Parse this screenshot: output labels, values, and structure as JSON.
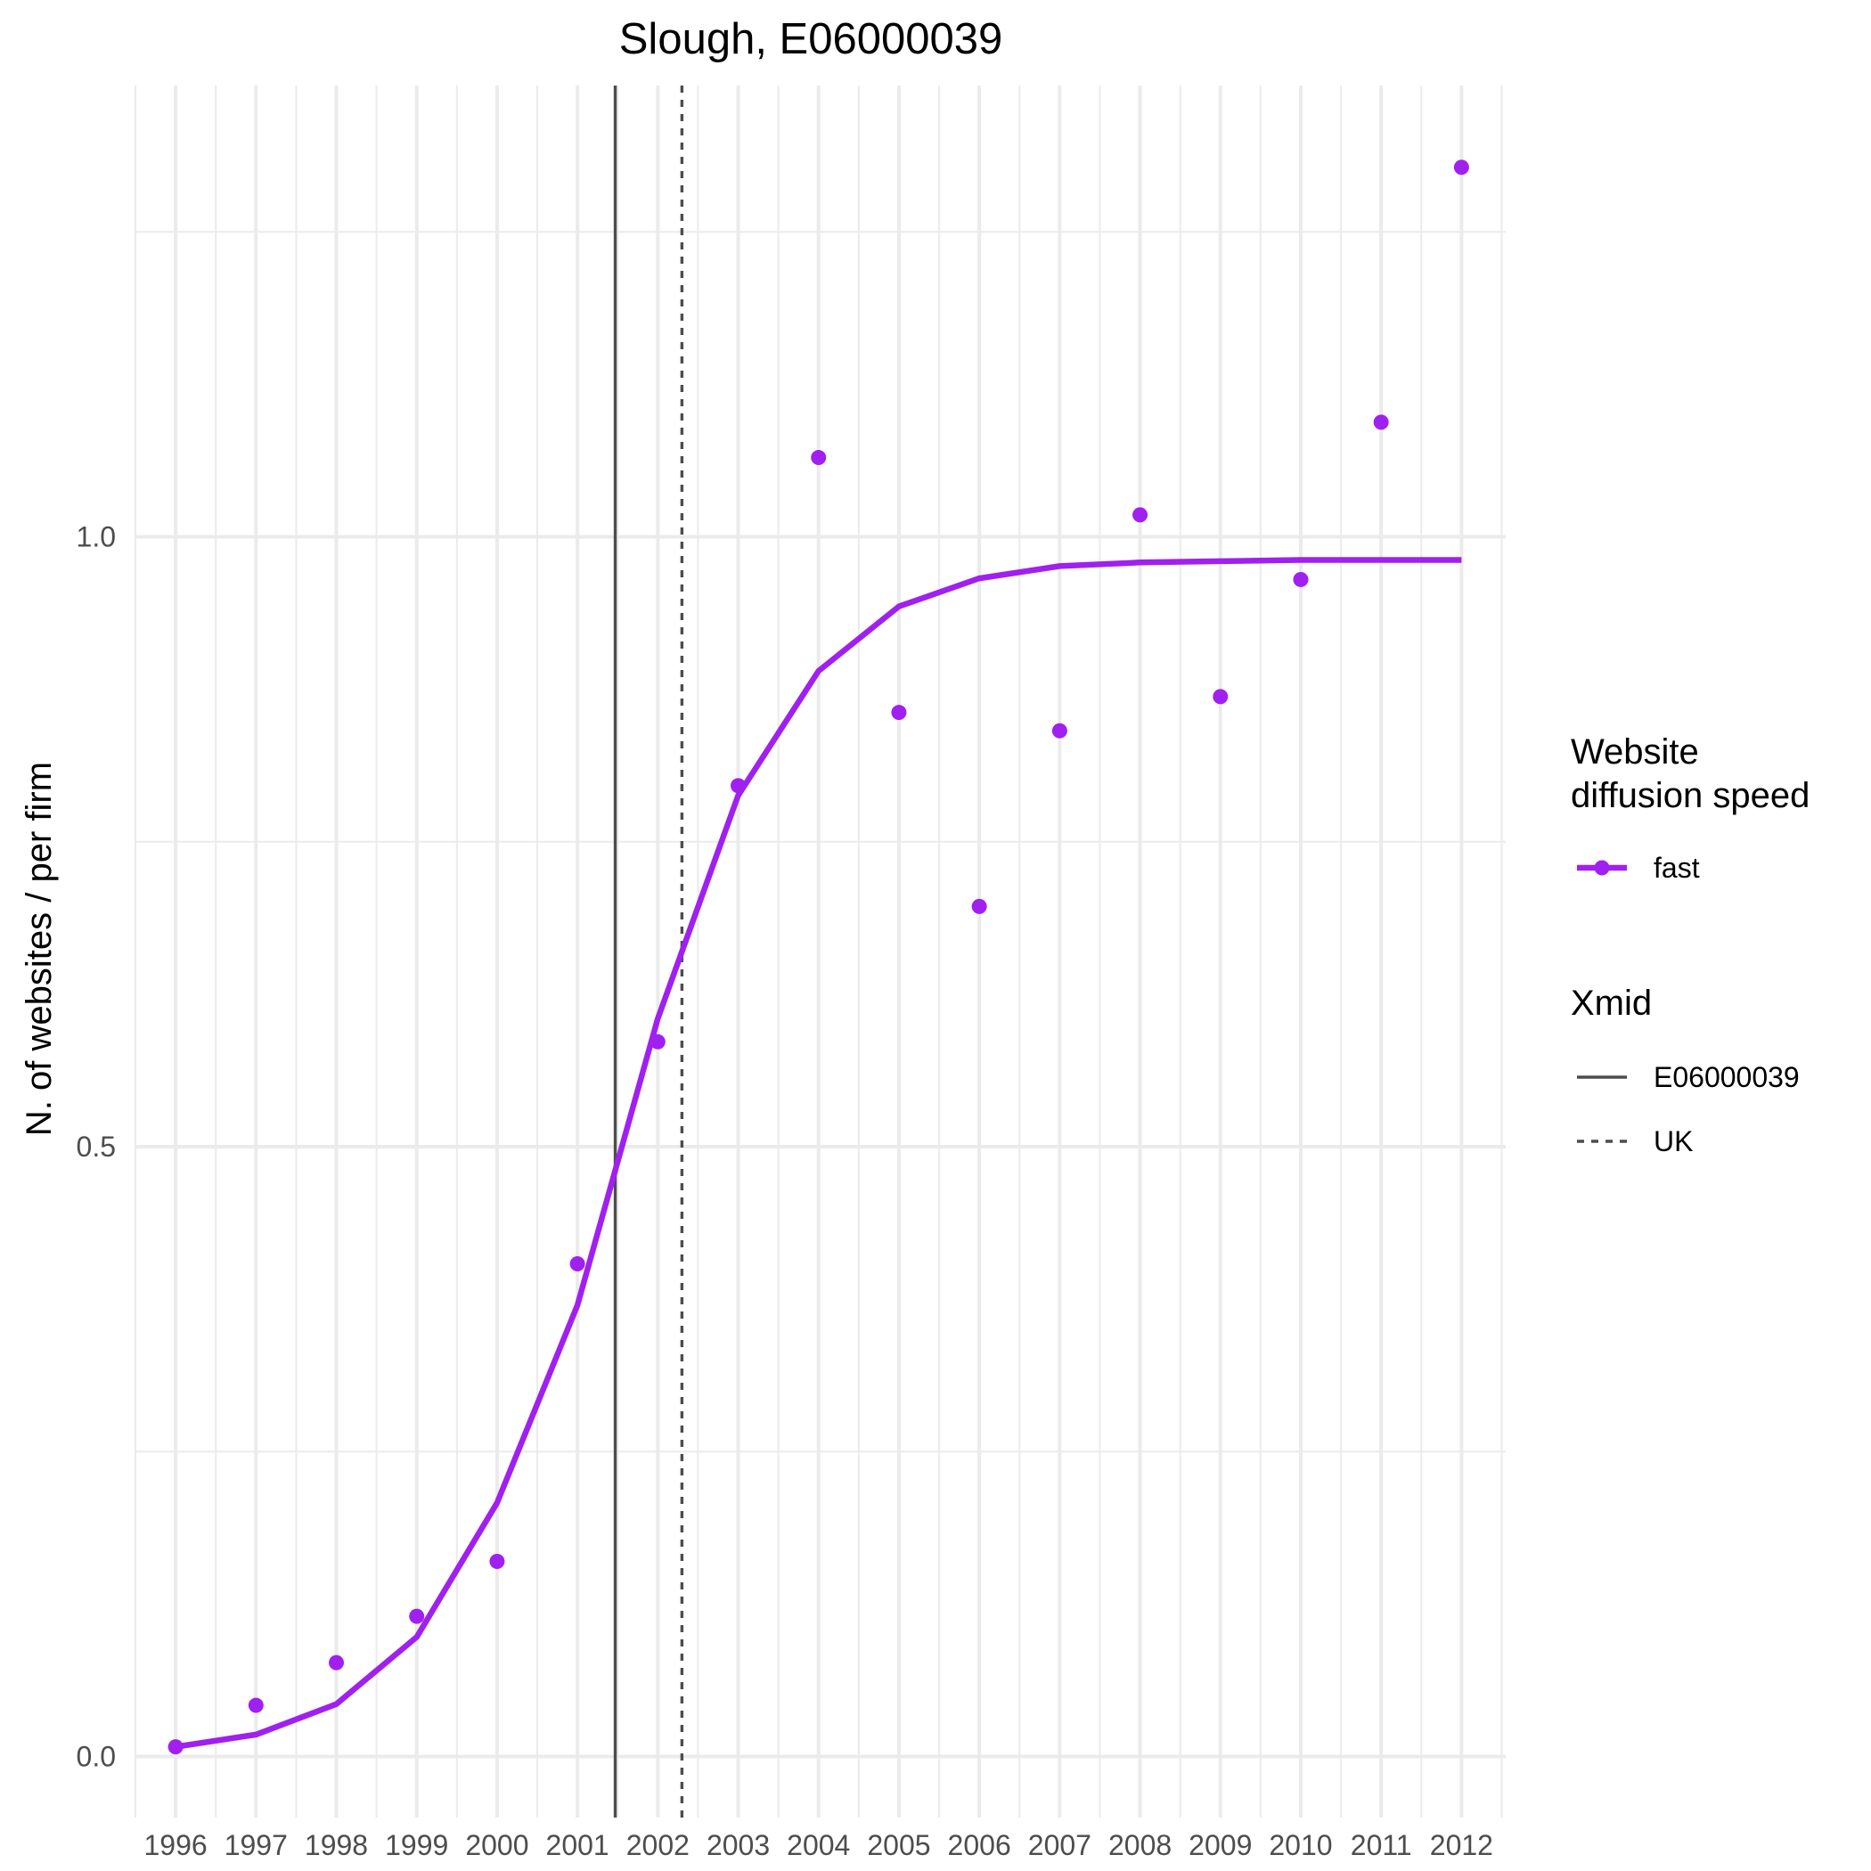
{
  "chart_data": {
    "type": "line",
    "title": "Slough, E06000039",
    "xlabel": "",
    "ylabel": "N. of websites / per firm",
    "x": [
      1996,
      1997,
      1998,
      1999,
      2000,
      2001,
      2002,
      2003,
      2004,
      2005,
      2006,
      2007,
      2008,
      2009,
      2010,
      2011,
      2012
    ],
    "x_ticks": [
      "1996",
      "1997",
      "1998",
      "1999",
      "2000",
      "2001",
      "2002",
      "2003",
      "2004",
      "2005",
      "2006",
      "2007",
      "2008",
      "2009",
      "2010",
      "2011",
      "2012"
    ],
    "y_ticks": [
      0.0,
      0.5,
      1.0
    ],
    "y_tick_labels": [
      "0.0",
      "0.5",
      "1.0"
    ],
    "xlim": [
      1995.5,
      2012.55
    ],
    "ylim": [
      -0.05,
      1.37
    ],
    "grid": true,
    "series": [
      {
        "name": "fast",
        "color": "#a020f0",
        "points": [
          0.008,
          0.042,
          0.077,
          0.115,
          0.16,
          0.404,
          0.586,
          0.796,
          1.065,
          0.856,
          0.697,
          0.841,
          1.018,
          0.869,
          0.965,
          1.094,
          1.303
        ],
        "fit": [
          0.008,
          0.018,
          0.043,
          0.098,
          0.208,
          0.37,
          0.605,
          0.788,
          0.89,
          0.943,
          0.966,
          0.976,
          0.979,
          0.98,
          0.981,
          0.981,
          0.981
        ]
      }
    ],
    "vlines": [
      {
        "name": "E06000039",
        "x": 2001.47,
        "style": "solid",
        "color": "#4d4d4d"
      },
      {
        "name": "UK",
        "x": 2002.3,
        "style": "dashed",
        "color": "#4d4d4d"
      }
    ],
    "legend": {
      "placement": "right",
      "groups": [
        {
          "title_lines": [
            "Website",
            "diffusion speed"
          ],
          "entries": [
            {
              "label": "fast",
              "kind": "line-point",
              "color": "#a020f0"
            }
          ]
        },
        {
          "title_lines": [
            "Xmid"
          ],
          "entries": [
            {
              "label": "E06000039",
              "kind": "solid"
            },
            {
              "label": "UK",
              "kind": "dashed"
            }
          ]
        }
      ]
    }
  }
}
